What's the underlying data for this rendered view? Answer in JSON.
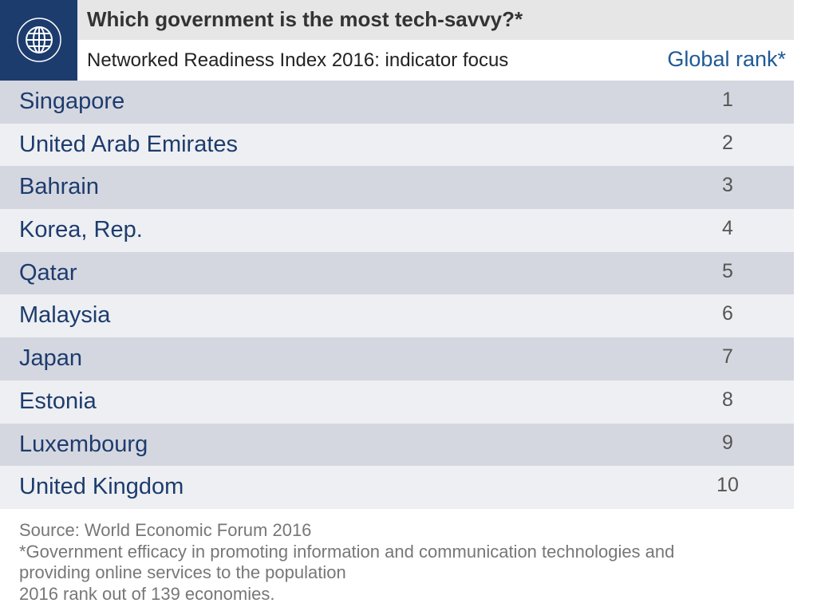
{
  "header": {
    "title": "Which government is the most tech-savvy?*",
    "subtitle": "Networked Readiness Index 2016: indicator focus",
    "column_label": "Global rank*"
  },
  "table": {
    "rows": [
      [
        "Singapore",
        1
      ],
      [
        "United Arab Emirates",
        2
      ],
      [
        "Bahrain",
        3
      ],
      [
        "Korea, Rep.",
        4
      ],
      [
        "Qatar",
        5
      ],
      [
        "Malaysia",
        6
      ],
      [
        "Japan",
        7
      ],
      [
        "Estonia",
        8
      ],
      [
        "Luxembourg",
        9
      ],
      [
        "United Kingdom",
        10
      ]
    ]
  },
  "footer": {
    "source": "Source: World Economic Forum 2016",
    "notes": [
      "*Government efficacy in promoting information and communication technologies and",
      "providing online services to the population",
      "2016 rank out of 139 economies."
    ]
  }
}
